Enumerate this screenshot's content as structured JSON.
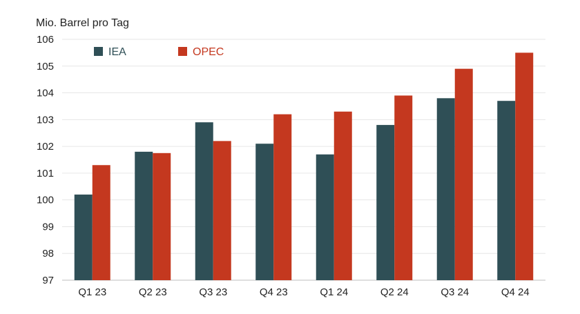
{
  "chart_data": {
    "type": "bar",
    "ylabel": "Mio. Barrel pro Tag",
    "categories": [
      "Q1 23",
      "Q2 23",
      "Q3 23",
      "Q4 23",
      "Q1 24",
      "Q2 24",
      "Q3 24",
      "Q4 24"
    ],
    "series": [
      {
        "name": "IEA",
        "color": "#2f4f56",
        "values": [
          100.2,
          101.8,
          102.9,
          102.1,
          101.7,
          102.8,
          103.8,
          103.7
        ]
      },
      {
        "name": "OPEC",
        "color": "#c4381f",
        "values": [
          101.3,
          101.75,
          102.2,
          103.2,
          103.3,
          103.9,
          104.9,
          105.5
        ]
      }
    ],
    "ylim": [
      97,
      106
    ],
    "yticks": [
      97,
      98,
      99,
      100,
      101,
      102,
      103,
      104,
      105,
      106
    ],
    "grid": true,
    "legend_position": "top-left"
  }
}
